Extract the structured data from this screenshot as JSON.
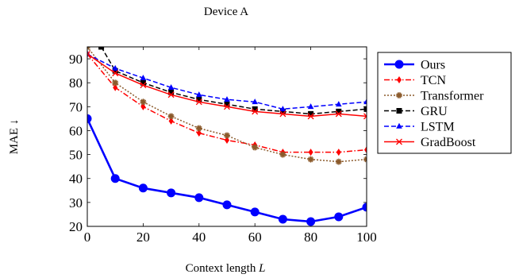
{
  "chart_data": {
    "type": "line",
    "title": "Device A",
    "xlabel": "Context length",
    "xlabel_var": "L",
    "ylabel": "MAE ↓",
    "xlim": [
      0,
      100
    ],
    "ylim": [
      20,
      95
    ],
    "xticks": [
      0,
      20,
      40,
      60,
      80,
      100
    ],
    "yticks": [
      20,
      30,
      40,
      50,
      60,
      70,
      80,
      90
    ],
    "grid": false,
    "legend_position": "right",
    "x": [
      0,
      10,
      20,
      30,
      40,
      50,
      60,
      70,
      80,
      90,
      100
    ],
    "series": [
      {
        "name": "Ours",
        "color": "#0000ff",
        "marker": "circle",
        "dash": "solid",
        "values": [
          65,
          40,
          36,
          34,
          32,
          29,
          26,
          23,
          22,
          24,
          28
        ]
      },
      {
        "name": "TCN",
        "color": "#ff0000",
        "marker": "diamond",
        "dash": "dashdot",
        "values": [
          92,
          78,
          70,
          64,
          59,
          56,
          54,
          51,
          51,
          51,
          52
        ]
      },
      {
        "name": "Transformer",
        "color": "#8b5a2b",
        "marker": "star",
        "dash": "dotted",
        "values": [
          95,
          80,
          72,
          66,
          61,
          58,
          53,
          50,
          48,
          47,
          48
        ]
      },
      {
        "name": "GRU",
        "color": "#000000",
        "marker": "square",
        "dash": "dashed",
        "x": [
          5,
          10,
          20,
          30,
          40,
          50,
          60,
          70,
          80,
          90,
          100
        ],
        "values": [
          95,
          85,
          80,
          76,
          73,
          71,
          69,
          68,
          67,
          68,
          69
        ]
      },
      {
        "name": "LSTM",
        "color": "#0000ff",
        "marker": "triangle",
        "dash": "dashed",
        "values": [
          92,
          86,
          82,
          78,
          75,
          73,
          72,
          69,
          70,
          71,
          72
        ]
      },
      {
        "name": "GradBoost",
        "color": "#ff0000",
        "marker": "cross",
        "dash": "solid",
        "values": [
          92,
          84,
          79,
          75,
          72,
          70,
          68,
          67,
          66,
          67,
          66
        ]
      }
    ]
  }
}
